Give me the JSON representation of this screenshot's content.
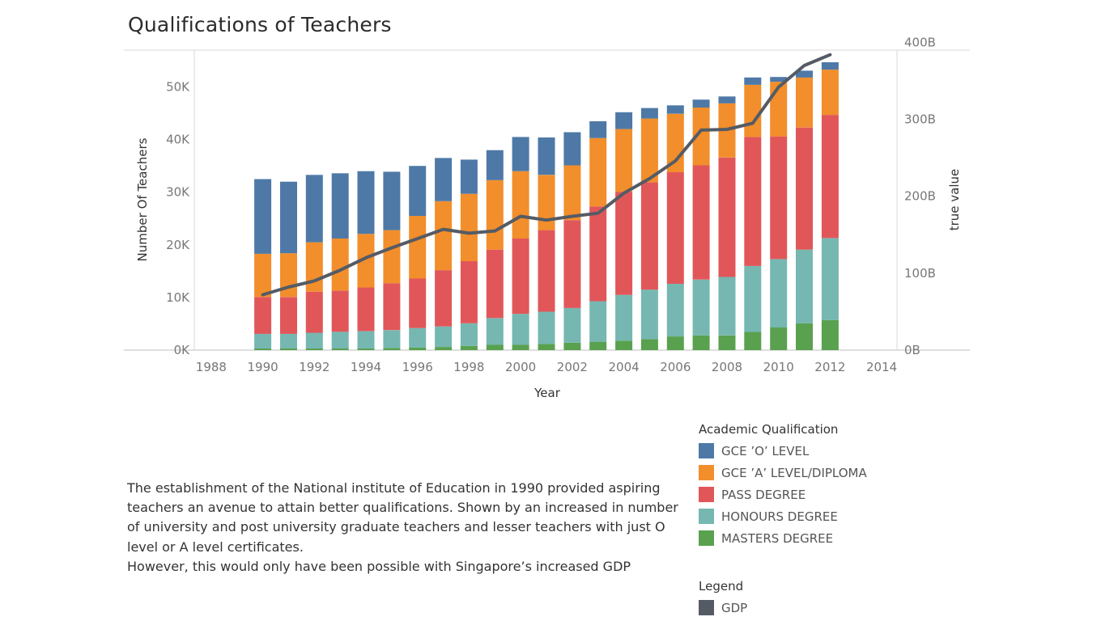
{
  "chart_data": {
    "type": "bar",
    "stacked": true,
    "title": "Qualifications of Teachers",
    "xlabel": "Year",
    "ylabel": "Number Of Teachers",
    "y2label": "true value",
    "x_ticks": [
      "1988",
      "1990",
      "1992",
      "1994",
      "1996",
      "1998",
      "2000",
      "2002",
      "2004",
      "2006",
      "2008",
      "2010",
      "2012",
      "2014"
    ],
    "xlim": [
      1987.5,
      2014.5
    ],
    "ylim": [
      0,
      57000
    ],
    "y_ticks": [
      0,
      10000,
      20000,
      30000,
      40000,
      50000
    ],
    "y_tick_labels": [
      "0K",
      "10K",
      "20K",
      "30K",
      "40K",
      "50K"
    ],
    "y2lim": [
      0,
      390000000000
    ],
    "y2_ticks": [
      0,
      100000000000,
      200000000000,
      300000000000,
      400000000000
    ],
    "y2_tick_labels": [
      "0B",
      "100B",
      "200B",
      "300B",
      "400B"
    ],
    "x": [
      1990,
      1991,
      1992,
      1993,
      1994,
      1995,
      1996,
      1997,
      1998,
      1999,
      2000,
      2001,
      2002,
      2003,
      2004,
      2005,
      2006,
      2007,
      2008,
      2009,
      2010,
      2011,
      2012
    ],
    "legend_title": "Academic Qualification",
    "series": [
      {
        "name": "MASTERS DEGREE",
        "color": "#59a14f",
        "values": [
          300,
          300,
          300,
          300,
          300,
          400,
          500,
          600,
          800,
          1000,
          1000,
          1200,
          1400,
          1600,
          1800,
          2100,
          2600,
          2800,
          2800,
          3500,
          4300,
          5100,
          5700
        ]
      },
      {
        "name": "HONOURS DEGREE",
        "color": "#76b7b2",
        "values": [
          2800,
          2800,
          3000,
          3200,
          3300,
          3400,
          3700,
          3900,
          4300,
          5100,
          5900,
          6100,
          6600,
          7700,
          8700,
          9400,
          10000,
          10600,
          11100,
          12500,
          13000,
          14000,
          15600
        ]
      },
      {
        "name": "PASS DEGREE",
        "color": "#e15759",
        "values": [
          7000,
          7000,
          7800,
          7800,
          8300,
          8900,
          9400,
          10700,
          11800,
          13000,
          14300,
          15500,
          16700,
          18000,
          19600,
          20400,
          21200,
          21700,
          22700,
          24500,
          23300,
          23200,
          23400
        ]
      },
      {
        "name": "GCE 'A' LEVEL/DIPLOMA",
        "color": "#f28e2b",
        "values": [
          8200,
          8300,
          9400,
          9900,
          10200,
          10100,
          11900,
          13100,
          12800,
          13200,
          12800,
          10500,
          10400,
          13000,
          11900,
          12100,
          11100,
          11000,
          10300,
          9900,
          10400,
          9500,
          8600
        ]
      },
      {
        "name": "GCE 'O' LEVEL",
        "color": "#4e79a7",
        "values": [
          14200,
          13600,
          12800,
          12400,
          11900,
          11100,
          9500,
          8200,
          6500,
          5700,
          6500,
          7100,
          6300,
          3200,
          3200,
          2000,
          1600,
          1500,
          1300,
          1400,
          900,
          1300,
          1400
        ]
      }
    ],
    "line_series": {
      "name": "GDP",
      "color": "#555b64",
      "values": [
        72000000000,
        82000000000,
        90000000000,
        104000000000,
        120000000000,
        133000000000,
        145000000000,
        157000000000,
        152000000000,
        155000000000,
        174000000000,
        169000000000,
        174000000000,
        178000000000,
        204000000000,
        223000000000,
        246000000000,
        286000000000,
        287000000000,
        295000000000,
        342000000000,
        370000000000,
        384000000000
      ]
    }
  },
  "description": {
    "line1": "The establishment of the National institute of Education in 1990 provided aspiring teachers an avenue to attain better qualifications. Shown by an increased in number of university and post university graduate teachers and lesser teachers with just O level or A level certificates.",
    "line2": "However, this would only have been possible with Singapore’s increased GDP"
  },
  "legend": {
    "qualification_title": "Academic Qualification",
    "qualification_items": [
      {
        "label": "GCE ’O’ LEVEL",
        "color": "#4e79a7"
      },
      {
        "label": "GCE ’A’ LEVEL/DIPLOMA",
        "color": "#f28e2b"
      },
      {
        "label": "PASS DEGREE",
        "color": "#e15759"
      },
      {
        "label": "HONOURS DEGREE",
        "color": "#76b7b2"
      },
      {
        "label": "MASTERS DEGREE",
        "color": "#59a14f"
      }
    ],
    "gdp_title": "Legend",
    "gdp_item": {
      "label": "GDP",
      "color": "#555b64"
    }
  }
}
